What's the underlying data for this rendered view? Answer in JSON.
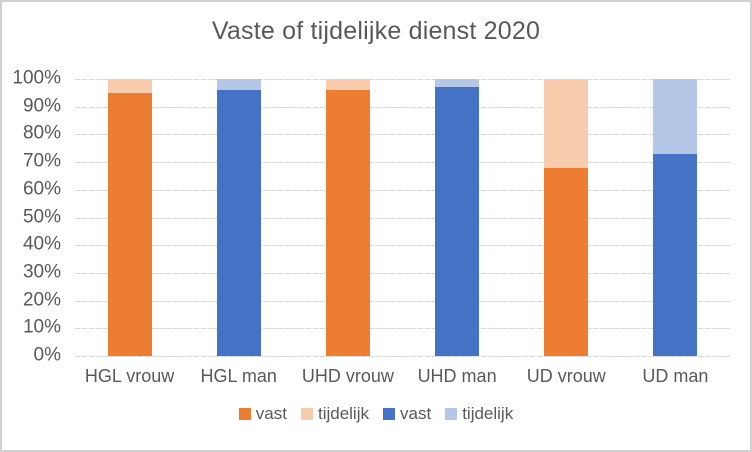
{
  "chart_data": {
    "type": "bar",
    "subtype": "100-percent-stacked-column",
    "title": "Vaste of tijdelijke dienst 2020",
    "categories": [
      "HGL vrouw",
      "HGL man",
      "UHD vrouw",
      "UHD man",
      "UD vrouw",
      "UD man"
    ],
    "series": [
      {
        "name": "vast",
        "color": "#ED7D31",
        "values": [
          95,
          0,
          96,
          0,
          68,
          0
        ]
      },
      {
        "name": "tijdelijk",
        "color": "#F8CBAD",
        "values": [
          5,
          0,
          4,
          0,
          32,
          0
        ]
      },
      {
        "name": "vast",
        "color": "#4472C4",
        "values": [
          0,
          96,
          0,
          97,
          0,
          73
        ]
      },
      {
        "name": "tijdelijk",
        "color": "#B4C7E7",
        "values": [
          0,
          4,
          0,
          3,
          0,
          27
        ]
      }
    ],
    "y_axis": {
      "ticks": [
        "100%",
        "90%",
        "80%",
        "70%",
        "60%",
        "50%",
        "40%",
        "30%",
        "20%",
        "10%",
        "0%"
      ],
      "min": 0,
      "max": 100,
      "grid": true
    },
    "xlabel": "",
    "ylabel": "",
    "legend": {
      "position": "bottom",
      "entries": [
        "vast",
        "tijdelijk",
        "vast",
        "tijdelijk"
      ]
    },
    "styles": {
      "text_color": "#595959",
      "grid_color": "#D9D9D9",
      "axis_color": "#D4D4D4",
      "background": "#FFFFFF",
      "border_color": "#D2D2D2"
    }
  }
}
